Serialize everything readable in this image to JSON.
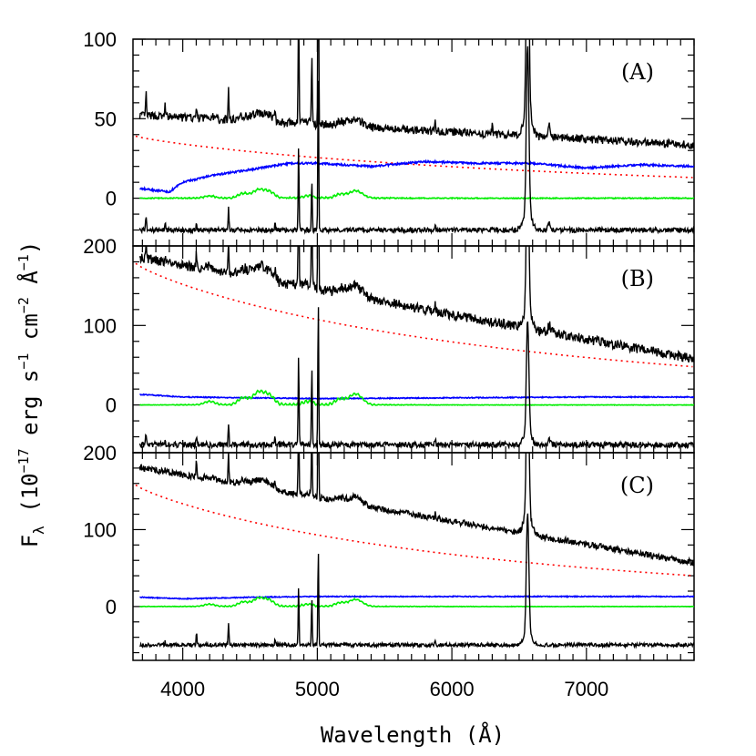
{
  "chart_data": {
    "type": "line",
    "xlabel": "Wavelength (Å)",
    "ylabel_parts": {
      "f": "F",
      "lambda": "λ",
      "a": " (10",
      "e1": "−17",
      "b": " erg s",
      "e2": "−1",
      "c": " cm",
      "e3": "−2",
      "d": " Å",
      "e4": "−1",
      "e": ")"
    },
    "xlim": [
      3630,
      7800
    ],
    "x_ticks": [
      4000,
      5000,
      6000,
      7000
    ],
    "colors": {
      "observed": "#000000",
      "residual": "#000000",
      "host": "#0000ff",
      "feii": "#00ee00",
      "powerlaw": "#ff0000"
    },
    "panels": [
      {
        "label": "(A)",
        "ylim": [
          -30,
          100
        ],
        "y_ticks": [
          0,
          50,
          100
        ],
        "observed": {
          "base": 52,
          "slope": -0.0045,
          "ripple": 2.5
        },
        "residual_offset": -20,
        "host": {
          "points": [
            [
              3700,
              6
            ],
            [
              3900,
              4
            ],
            [
              4000,
              10
            ],
            [
              4200,
              14
            ],
            [
              4500,
              18
            ],
            [
              4800,
              22
            ],
            [
              5000,
              22
            ],
            [
              5400,
              20
            ],
            [
              5800,
              23
            ],
            [
              6200,
              22
            ],
            [
              6600,
              22
            ],
            [
              7000,
              19
            ],
            [
              7400,
              21
            ],
            [
              7800,
              20
            ]
          ]
        },
        "feii_scale": 1,
        "powerlaw": {
          "at3650": 39,
          "at7800": 13
        },
        "lines": [
          {
            "x": 3727,
            "h": 14
          },
          {
            "x": 3869,
            "h": 8
          },
          {
            "x": 4102,
            "h": 8
          },
          {
            "x": 4340,
            "h": 20
          },
          {
            "x": 4686,
            "h": 8
          },
          {
            "x": 4861,
            "h": 75
          },
          {
            "x": 4959,
            "h": 45
          },
          {
            "x": 5007,
            "h": 140
          },
          {
            "x": 5876,
            "h": 6
          },
          {
            "x": 6300,
            "h": 5
          },
          {
            "x": 6563,
            "h": 150
          },
          {
            "x": 6725,
            "h": 6
          }
        ]
      },
      {
        "label": "(B)",
        "ylim": [
          -60,
          200
        ],
        "y_ticks": [
          0,
          100,
          200
        ],
        "observed": {
          "base": 185,
          "slope": -0.031,
          "ripple": 6
        },
        "residual_offset": -50,
        "host": {
          "points": [
            [
              3700,
              13
            ],
            [
              3720,
              13
            ],
            [
              4000,
              10
            ],
            [
              4500,
              9
            ],
            [
              5000,
              8
            ],
            [
              6000,
              9
            ],
            [
              7000,
              10
            ],
            [
              7800,
              10
            ]
          ]
        },
        "feii_scale": 3,
        "powerlaw": {
          "at3650": 178,
          "at7800": 48
        },
        "lines": [
          {
            "x": 3727,
            "h": 20
          },
          {
            "x": 3869,
            "h": 10
          },
          {
            "x": 4102,
            "h": 18
          },
          {
            "x": 4340,
            "h": 40
          },
          {
            "x": 4686,
            "h": 12
          },
          {
            "x": 4861,
            "h": 160
          },
          {
            "x": 4959,
            "h": 140
          },
          {
            "x": 5007,
            "h": 260
          },
          {
            "x": 5876,
            "h": 12
          },
          {
            "x": 6563,
            "h": 200
          },
          {
            "x": 6725,
            "h": 8
          }
        ]
      },
      {
        "label": "(C)",
        "ylim": [
          -70,
          200
        ],
        "y_ticks": [
          0,
          100,
          200
        ],
        "observed": {
          "base": 180,
          "slope": -0.03,
          "ripple": 4
        },
        "residual_offset": -50,
        "host": {
          "points": [
            [
              3700,
              12
            ],
            [
              4000,
              10
            ],
            [
              4500,
              12
            ],
            [
              5000,
              13
            ],
            [
              6000,
              13
            ],
            [
              7000,
              13
            ],
            [
              7800,
              13
            ]
          ]
        },
        "feii_scale": 2,
        "powerlaw": {
          "at3650": 158,
          "at7800": 40
        },
        "lines": [
          {
            "x": 3869,
            "h": 8
          },
          {
            "x": 4102,
            "h": 22
          },
          {
            "x": 4340,
            "h": 38
          },
          {
            "x": 4686,
            "h": 10
          },
          {
            "x": 4861,
            "h": 110
          },
          {
            "x": 4959,
            "h": 90
          },
          {
            "x": 5007,
            "h": 180
          },
          {
            "x": 5876,
            "h": 8
          },
          {
            "x": 6563,
            "h": 220
          }
        ]
      }
    ]
  }
}
